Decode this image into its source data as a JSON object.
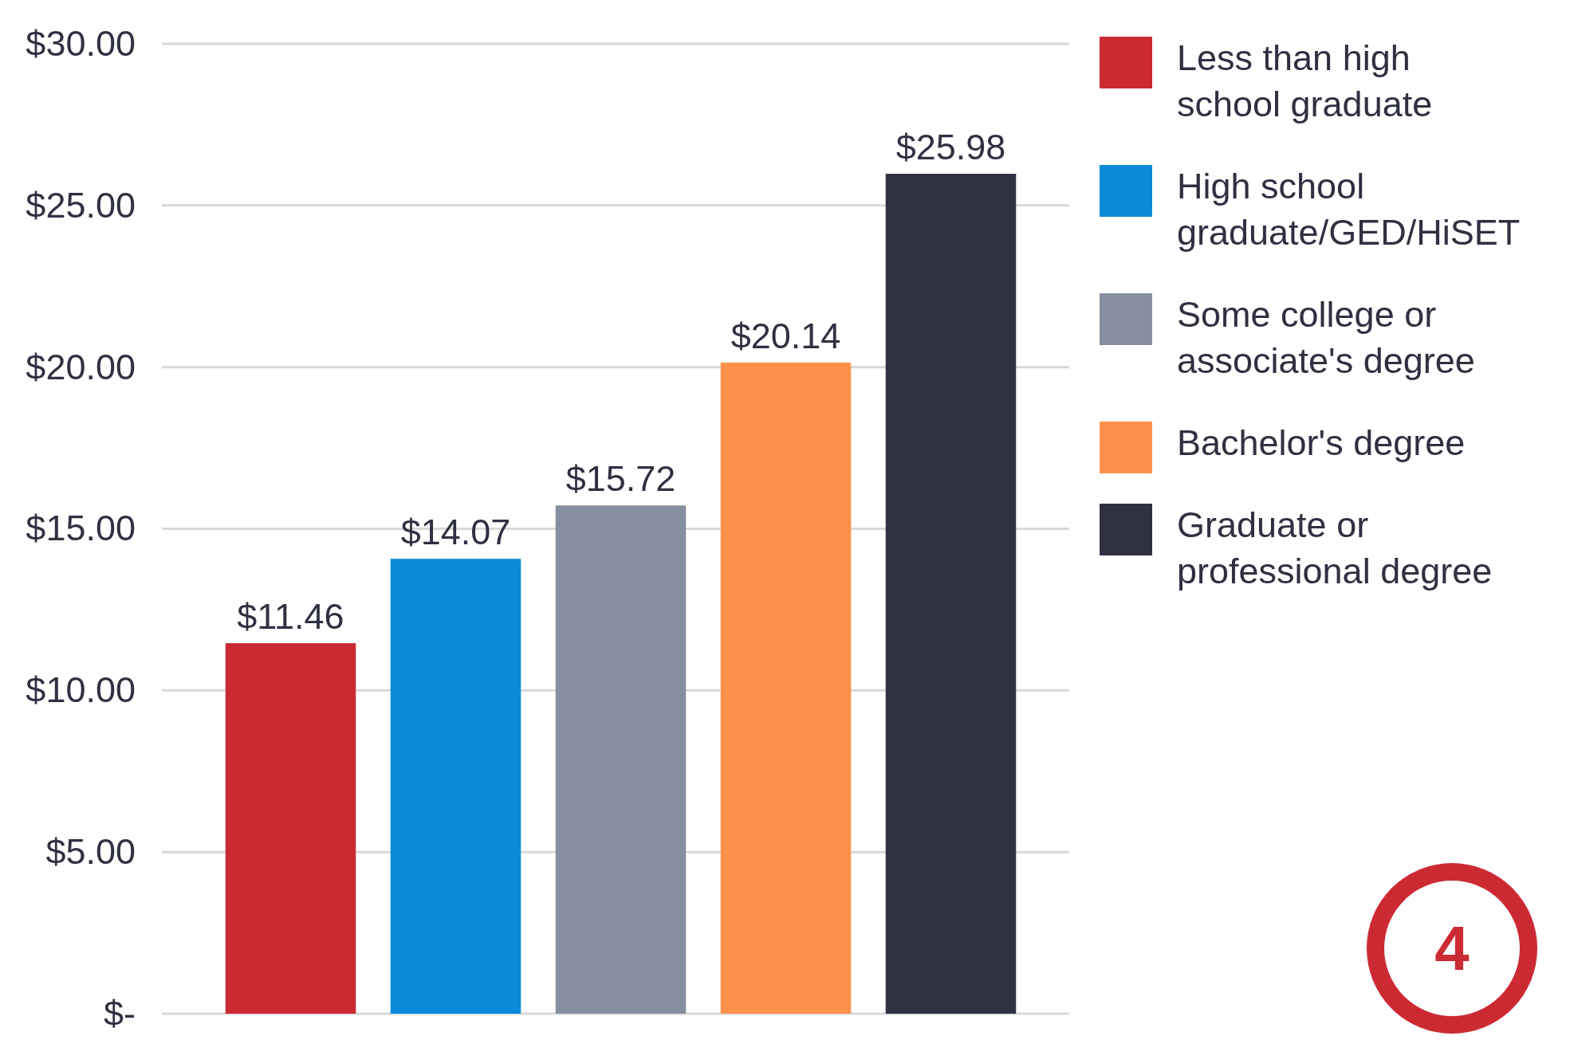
{
  "chart_data": {
    "type": "bar",
    "categories": [
      null,
      null,
      null,
      null,
      null
    ],
    "series": [
      {
        "name": "Less than high school graduate",
        "color": "#cc2a33",
        "values": [
          11.46,
          null,
          null,
          null,
          null
        ],
        "value_labels": [
          "$11.46",
          null,
          null,
          null,
          null
        ]
      },
      {
        "name": "High school graduate/GED/HiSET",
        "color": "#0a8ad8",
        "values": [
          null,
          14.07,
          null,
          null,
          null
        ],
        "value_labels": [
          null,
          "$14.07",
          null,
          null,
          null
        ]
      },
      {
        "name": "Some college or associate's degree",
        "color": "#868fa0",
        "values": [
          null,
          null,
          15.72,
          null,
          null
        ],
        "value_labels": [
          null,
          null,
          "$15.72",
          null,
          null
        ]
      },
      {
        "name": "Bachelor's degree",
        "color": "#fd914b",
        "values": [
          null,
          null,
          null,
          20.14,
          null
        ],
        "value_labels": [
          null,
          null,
          null,
          "$20.14",
          null
        ]
      },
      {
        "name": "Graduate or professional degree",
        "color": "#2f3142",
        "values": [
          null,
          null,
          null,
          null,
          25.98
        ],
        "value_labels": [
          null,
          null,
          null,
          null,
          "$25.98"
        ]
      }
    ],
    "ylim": [
      0,
      30
    ],
    "yticks": [
      {
        "value": 0,
        "label": "$-"
      },
      {
        "value": 5,
        "label": "$5.00"
      },
      {
        "value": 10,
        "label": "$10.00"
      },
      {
        "value": 15,
        "label": "$15.00"
      },
      {
        "value": 20,
        "label": "$20.00"
      },
      {
        "value": 25,
        "label": "$25.00"
      },
      {
        "value": 30,
        "label": "$30.00"
      }
    ],
    "grid": "y",
    "legend": "right",
    "tick_labels": "y",
    "annotations": [
      "4"
    ]
  }
}
